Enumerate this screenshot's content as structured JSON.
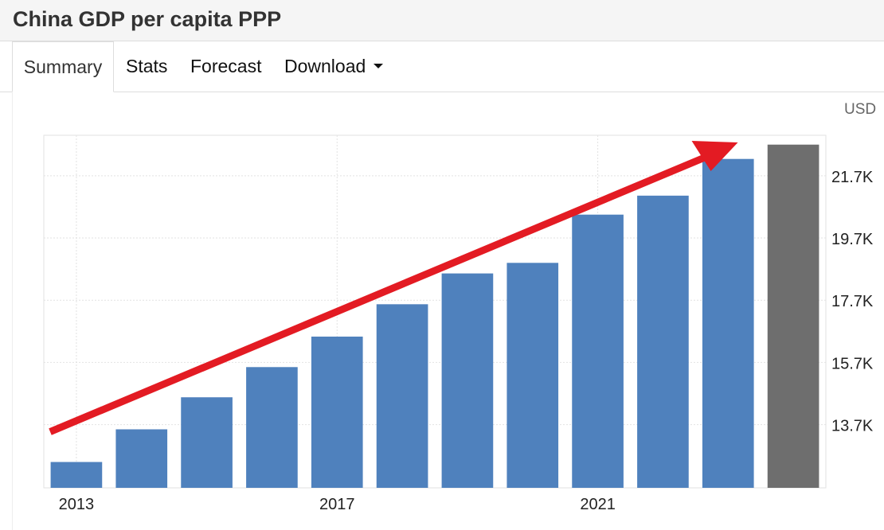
{
  "page": {
    "title": "China GDP per capita PPP"
  },
  "tabs": [
    {
      "label": "Summary"
    },
    {
      "label": "Stats"
    },
    {
      "label": "Forecast"
    },
    {
      "label": "Download"
    }
  ],
  "unit": "USD",
  "colors": {
    "bar": "#4f81bd",
    "forecast_bar": "#6e6e6e",
    "arrow": "#e31b23",
    "grid": "#e2e2e2"
  },
  "chart_data": {
    "type": "bar",
    "categories": [
      "2013",
      "2014",
      "2015",
      "2016",
      "2017",
      "2018",
      "2019",
      "2020",
      "2021",
      "2022",
      "2023",
      "2024"
    ],
    "values": [
      12500,
      13550,
      14580,
      15550,
      16530,
      17570,
      18560,
      18900,
      20450,
      21060,
      22240,
      22700
    ],
    "x_tick_labels": [
      "2013",
      "2017",
      "2021"
    ],
    "y_ticks": [
      {
        "value": 13700,
        "label": "13.7K"
      },
      {
        "value": 15700,
        "label": "15.7K"
      },
      {
        "value": 17700,
        "label": "17.7K"
      },
      {
        "value": 19700,
        "label": "19.7K"
      },
      {
        "value": 21700,
        "label": "21.7K"
      }
    ],
    "ylim": [
      11670,
      23000
    ],
    "y_axis_side": "right",
    "grid": true,
    "trend_arrow": true,
    "last_bar_highlighted": true
  }
}
